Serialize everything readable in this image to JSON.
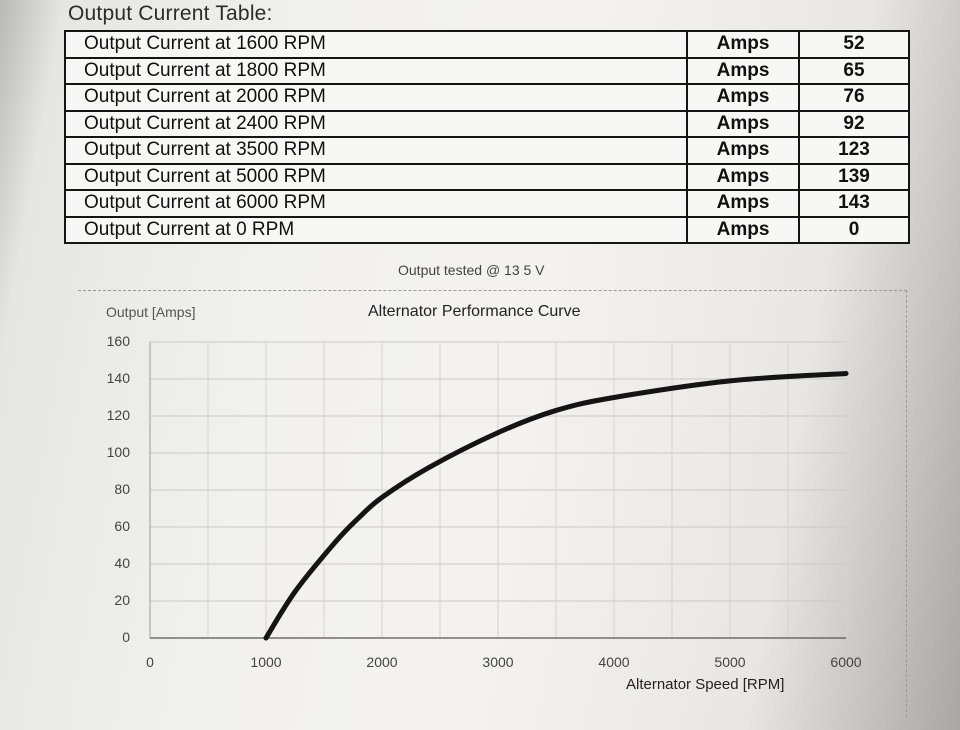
{
  "heading": "Output Current Table:",
  "table": {
    "rows": [
      {
        "label": "Output Current at 1600 RPM",
        "unit": "Amps",
        "value": "52"
      },
      {
        "label": "Output Current at 1800 RPM",
        "unit": "Amps",
        "value": "65"
      },
      {
        "label": "Output Current at 2000 RPM",
        "unit": "Amps",
        "value": "76"
      },
      {
        "label": "Output Current at 2400 RPM",
        "unit": "Amps",
        "value": "92"
      },
      {
        "label": "Output Current at 3500 RPM",
        "unit": "Amps",
        "value": "123"
      },
      {
        "label": "Output Current at 5000 RPM",
        "unit": "Amps",
        "value": "139"
      },
      {
        "label": "Output Current at 6000 RPM",
        "unit": "Amps",
        "value": "143"
      },
      {
        "label": "Output Current at 0 RPM",
        "unit": "Amps",
        "value": "0"
      }
    ]
  },
  "test_note": "Output tested @ 13 5 V",
  "chart_data": {
    "type": "line",
    "title": "Alternator Performance Curve",
    "ylabel": "Output [Amps]",
    "xlabel": "Alternator Speed [RPM]",
    "xlim": [
      0,
      6000
    ],
    "ylim": [
      0,
      160
    ],
    "xticks": [
      "0",
      "1000",
      "2000",
      "3000",
      "4000",
      "5000",
      "6000"
    ],
    "yticks": [
      "160",
      "140",
      "120",
      "100",
      "80",
      "60",
      "40",
      "20",
      "0"
    ],
    "grid": true,
    "x": [
      1000,
      1250,
      1600,
      1800,
      2000,
      2400,
      3000,
      3500,
      4000,
      5000,
      6000
    ],
    "y": [
      0,
      25,
      52,
      65,
      76,
      92,
      111,
      123,
      130,
      139,
      143
    ]
  }
}
